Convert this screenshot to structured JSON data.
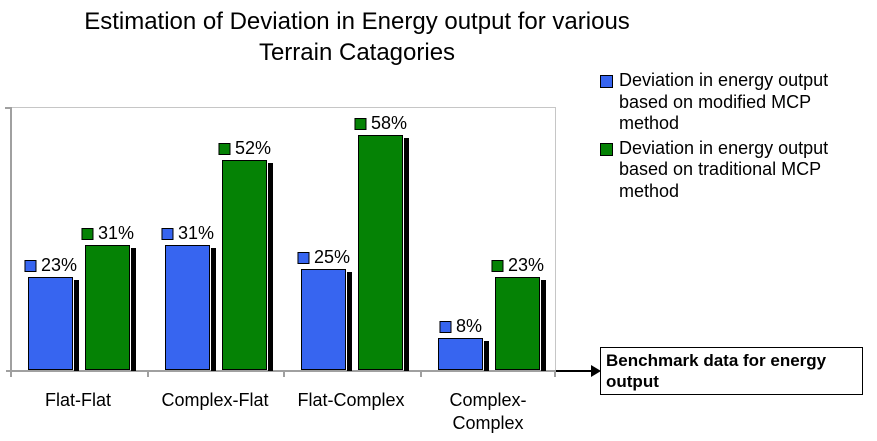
{
  "chart_data": {
    "type": "bar",
    "title": "Estimation of Deviation in Energy output for various Terrain Catagories",
    "title_lines": [
      "Estimation of Deviation in Energy output for various",
      "Terrain Catagories"
    ],
    "categories": [
      "Flat-Flat",
      "Complex-Flat",
      "Flat-Complex",
      "Complex-Complex"
    ],
    "x_tick_display": [
      "Flat-Flat",
      "Complex-Flat",
      "Flat-Complex",
      "Complex-\nComplex"
    ],
    "xlabel": "",
    "ylabel": "",
    "ylim": [
      0,
      65
    ],
    "y_axis_tick_labels_visible": false,
    "grid": false,
    "legend_position": "right",
    "series": [
      {
        "name": "Deviation in energy output based on modified MCP method",
        "legend_lines": [
          "Deviation in energy output",
          "based on modified MCP",
          "method"
        ],
        "color": "#3765F0",
        "values": [
          23,
          31,
          25,
          8
        ],
        "data_labels": [
          "23%",
          "31%",
          "25%",
          "8%"
        ]
      },
      {
        "name": "Deviation in energy output based on traditional MCP method",
        "legend_lines": [
          "Deviation in energy output",
          "based on traditional MCP",
          "method"
        ],
        "color": "#058205",
        "values": [
          31,
          52,
          58,
          23
        ],
        "data_labels": [
          "31%",
          "52%",
          "58%",
          "23%"
        ]
      }
    ],
    "annotation": {
      "text": "Benchmark data for energy output",
      "arrow": true
    }
  },
  "colors": {
    "series_modified_mcp": "#3765F0",
    "series_traditional_mcp": "#058205",
    "bar_outline": "#000000",
    "bar_shadow": "#000000",
    "axis": "#a0a0a0",
    "plot_border": "#c6c6c6",
    "annotation_border": "#000000",
    "background": "#ffffff"
  }
}
